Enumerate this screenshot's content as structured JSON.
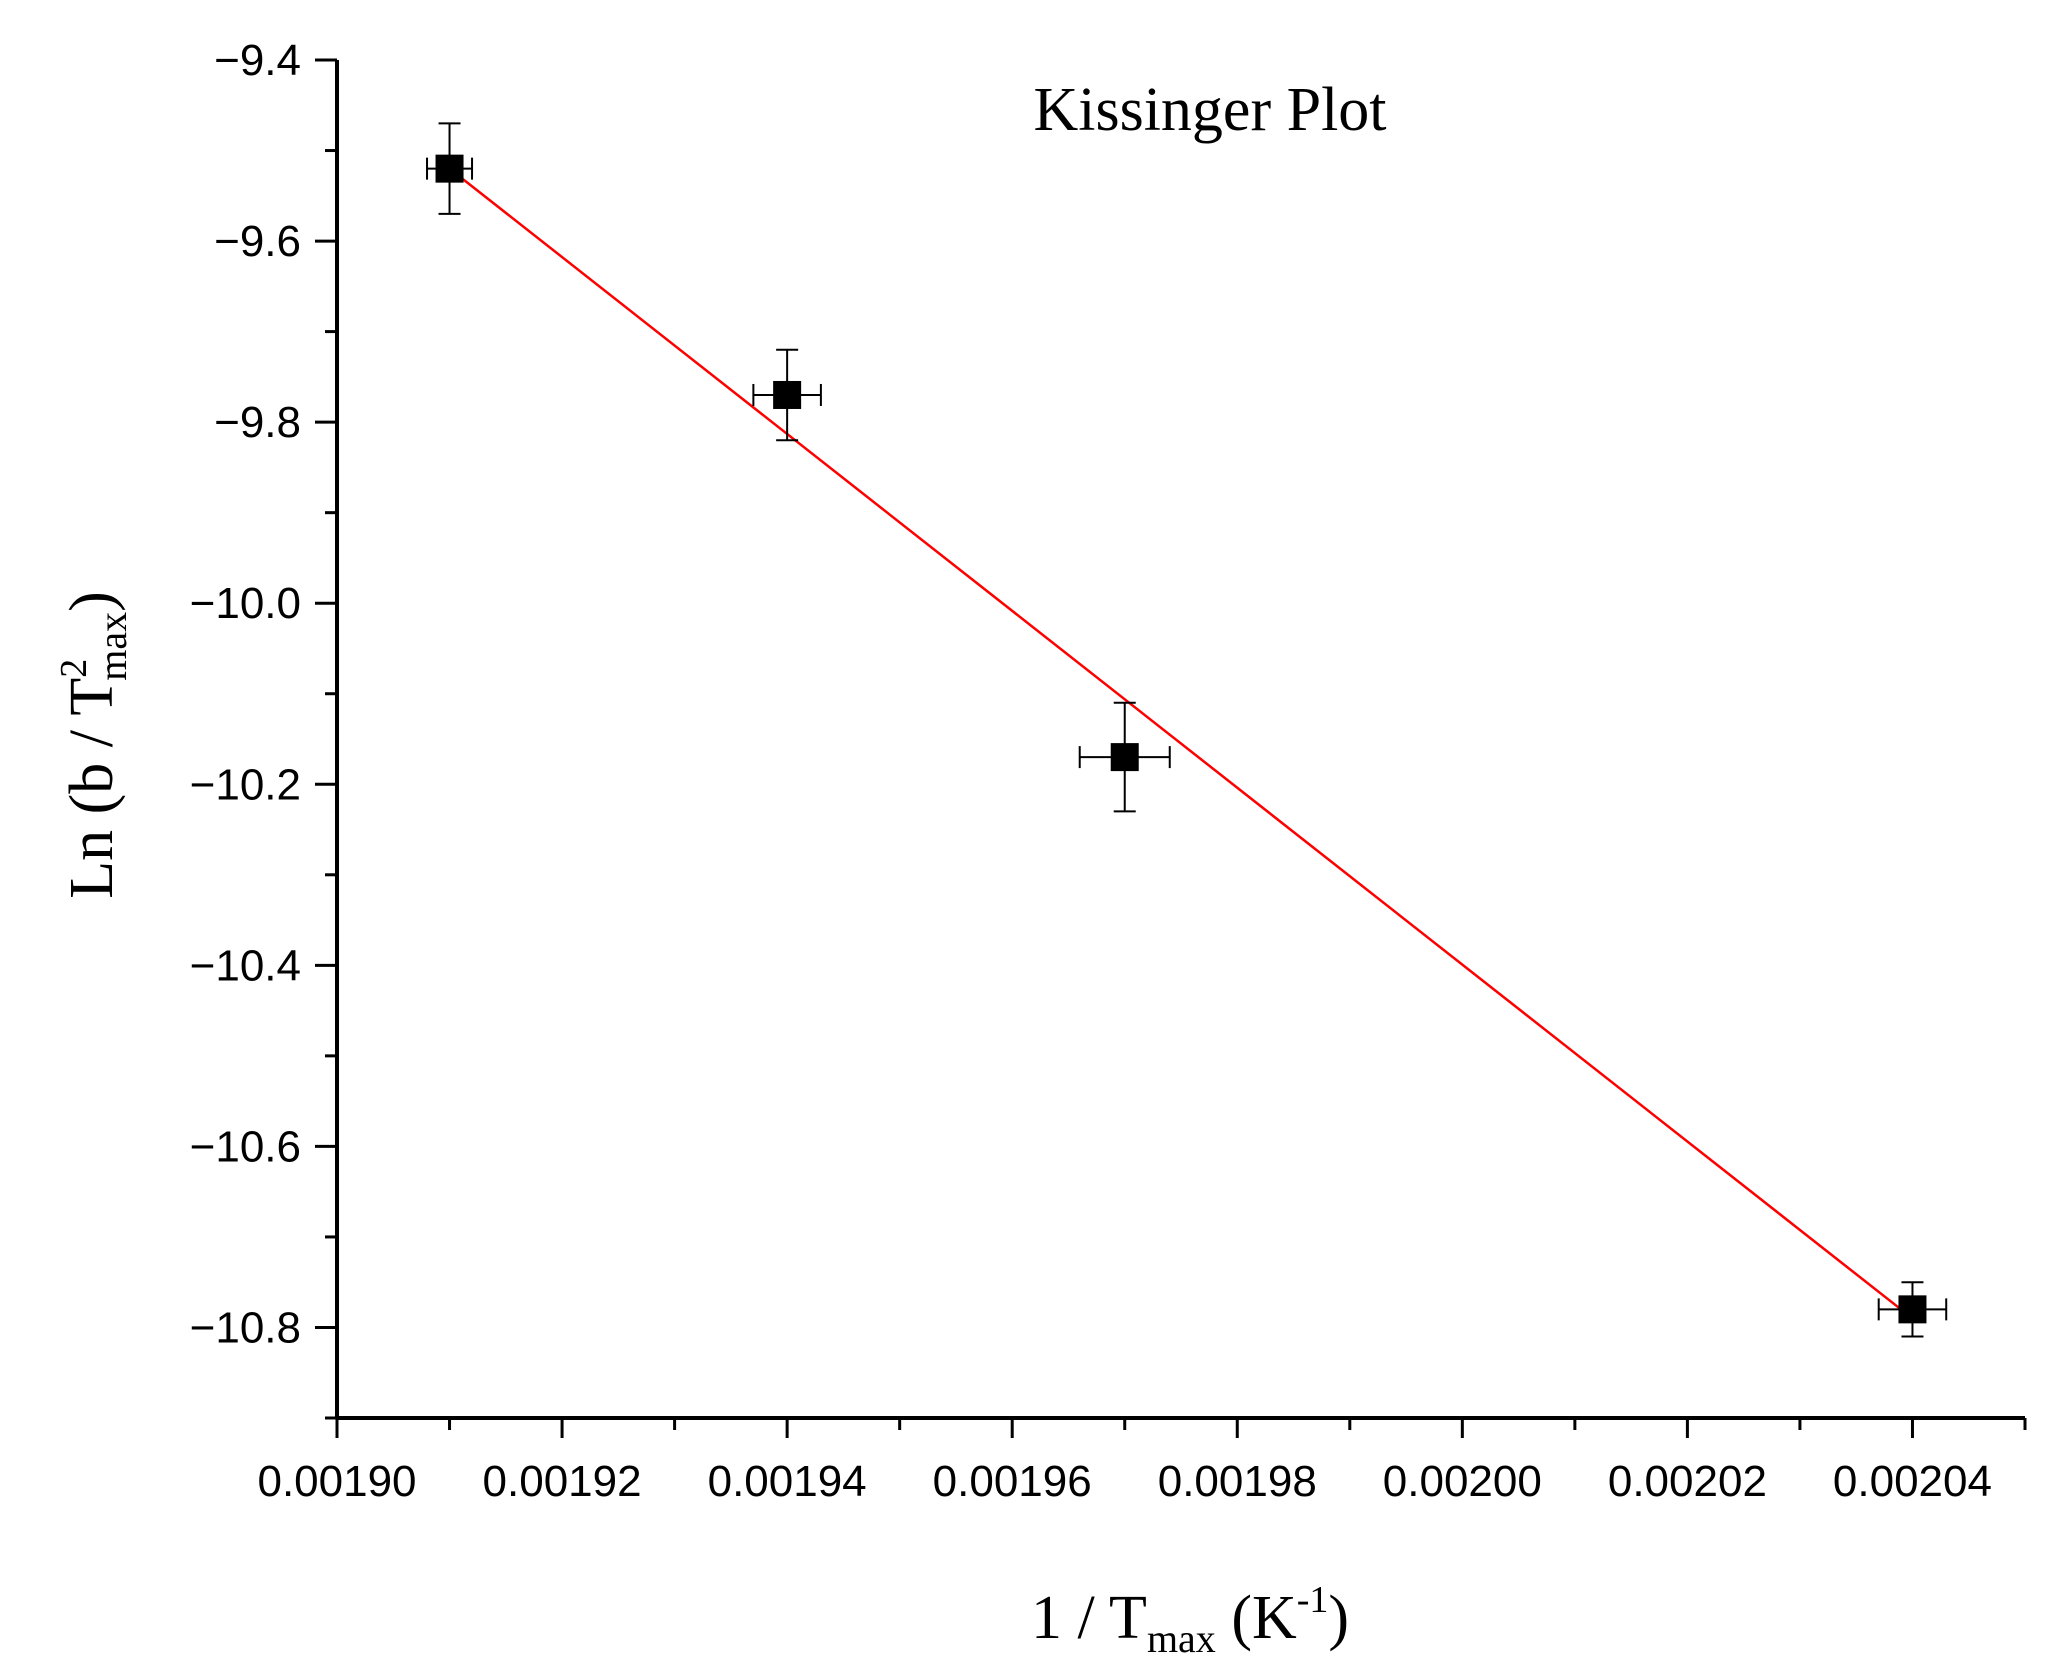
{
  "chart_data": {
    "type": "scatter",
    "title": "Kissinger Plot",
    "xlabel": {
      "main": "1 / T",
      "sub": "max",
      "unit_pre": " (K",
      "unit_sup": "-1",
      "unit_post": ")"
    },
    "ylabel": {
      "pre": "Ln (b / T",
      "sup": "2",
      "sub": "max",
      "post": ")"
    },
    "xlim": [
      0.0019,
      0.00205
    ],
    "ylim": [
      -10.9,
      -9.4
    ],
    "x_ticks": [
      "0.00190",
      "0.00192",
      "0.00194",
      "0.00196",
      "0.00198",
      "0.00200",
      "0.00202",
      "0.00204"
    ],
    "y_ticks": [
      "−9.4",
      "−9.6",
      "−9.8",
      "−10.0",
      "−10.2",
      "−10.4",
      "−10.6",
      "−10.8"
    ],
    "grid": false,
    "series": [
      {
        "marker": "square",
        "color": "#000000",
        "points": [
          {
            "x": 0.00191,
            "y": -9.52,
            "xerr": 2e-06,
            "yerr": 0.05
          },
          {
            "x": 0.00194,
            "y": -9.77,
            "xerr": 3e-06,
            "yerr": 0.05
          },
          {
            "x": 0.00197,
            "y": -10.17,
            "xerr": 4e-06,
            "yerr": 0.06
          },
          {
            "x": 0.00204,
            "y": -10.78,
            "xerr": 3e-06,
            "yerr": 0.03
          }
        ]
      }
    ],
    "fit_line": {
      "type": "linear",
      "color": "#ff0000",
      "x": [
        0.00191,
        0.00204
      ],
      "y": [
        -9.52,
        -10.79
      ]
    }
  }
}
